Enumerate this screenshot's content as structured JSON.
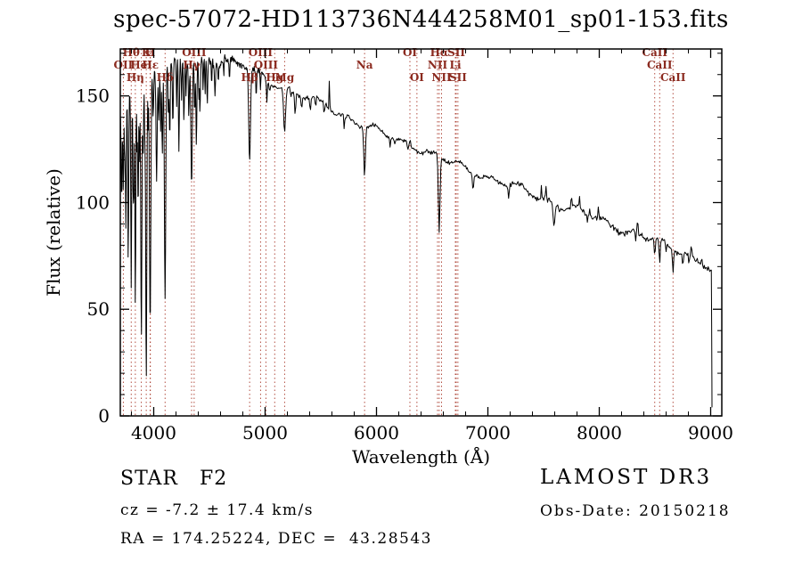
{
  "title": "spec-57072-HD113736N444258M01_sp01-153.fits",
  "annotations": {
    "classification": "STAR   F2",
    "cz": "cz = -7.2 ± 17.4 km/s",
    "ra_dec": "RA = 174.25224, DEC =  43.28543",
    "survey": "LAMOST DR3",
    "obs_date": "Obs-Date: 20150218"
  },
  "chart_data": {
    "type": "line",
    "title": "spec-57072-HD113736N444258M01_sp01-153.fits",
    "xlabel": "Wavelength (Å)",
    "ylabel": "Flux (relative)",
    "xlim": [
      3700,
      9100
    ],
    "ylim": [
      0,
      172
    ],
    "x_ticks": [
      4000,
      5000,
      6000,
      7000,
      8000,
      9000
    ],
    "y_ticks": [
      0,
      50,
      100,
      150
    ],
    "grid": false,
    "legend": "none",
    "colors": {
      "spectrum": "#000000",
      "axis": "#000000",
      "marker_line": "#aa3b2d",
      "marker_label": "#8b2a1f",
      "background": "#ffffff"
    },
    "continuum_format": "[wavelength_A, flux]",
    "continuum": [
      [
        3700,
        140
      ],
      [
        3760,
        152
      ],
      [
        3850,
        157
      ],
      [
        3950,
        160
      ],
      [
        4050,
        162
      ],
      [
        4150,
        164
      ],
      [
        4250,
        165
      ],
      [
        4350,
        166
      ],
      [
        4450,
        167
      ],
      [
        4550,
        167
      ],
      [
        4650,
        166.5
      ],
      [
        4750,
        165
      ],
      [
        4850,
        163
      ],
      [
        4950,
        160
      ],
      [
        5050,
        157
      ],
      [
        5150,
        155
      ],
      [
        5250,
        152
      ],
      [
        5350,
        150
      ],
      [
        5450,
        147
      ],
      [
        5550,
        145
      ],
      [
        5650,
        142
      ],
      [
        5750,
        140
      ],
      [
        5850,
        137
      ],
      [
        5950,
        135
      ],
      [
        6050,
        132
      ],
      [
        6150,
        130
      ],
      [
        6250,
        128
      ],
      [
        6350,
        126
      ],
      [
        6450,
        124
      ],
      [
        6550,
        121
      ],
      [
        6650,
        119
      ],
      [
        6750,
        117
      ],
      [
        6850,
        115
      ],
      [
        6950,
        113
      ],
      [
        7050,
        111
      ],
      [
        7150,
        109
      ],
      [
        7250,
        107
      ],
      [
        7350,
        105
      ],
      [
        7450,
        103
      ],
      [
        7550,
        101
      ],
      [
        7650,
        99
      ],
      [
        7750,
        97
      ],
      [
        7850,
        95
      ],
      [
        7950,
        93
      ],
      [
        8050,
        91
      ],
      [
        8150,
        89
      ],
      [
        8250,
        87
      ],
      [
        8350,
        85
      ],
      [
        8450,
        83
      ],
      [
        8550,
        81
      ],
      [
        8650,
        79
      ],
      [
        8750,
        77
      ],
      [
        8850,
        74
      ],
      [
        8950,
        71
      ],
      [
        9010,
        68
      ]
    ],
    "absorption_format": "[wavelength_A, min_flux, sigma_A]",
    "absorption_lines": [
      [
        3712,
        100,
        4
      ],
      [
        3727,
        105,
        4
      ],
      [
        3740,
        120,
        3
      ],
      [
        3750,
        88,
        4
      ],
      [
        3771,
        72,
        4
      ],
      [
        3798,
        60,
        4
      ],
      [
        3815,
        110,
        3
      ],
      [
        3820,
        96,
        4
      ],
      [
        3835,
        50,
        4
      ],
      [
        3850,
        125,
        3
      ],
      [
        3860,
        96,
        4
      ],
      [
        3873,
        118,
        3
      ],
      [
        3889,
        36,
        5
      ],
      [
        3905,
        122,
        4
      ],
      [
        3920,
        130,
        3
      ],
      [
        3933,
        16,
        5
      ],
      [
        3950,
        135,
        3
      ],
      [
        3968,
        42,
        6
      ],
      [
        3995,
        140,
        4
      ],
      [
        4026,
        110,
        5
      ],
      [
        4045,
        138,
        4
      ],
      [
        4063,
        132,
        3
      ],
      [
        4077,
        122,
        4
      ],
      [
        4102,
        55,
        6
      ],
      [
        4132,
        140,
        4
      ],
      [
        4144,
        130,
        4
      ],
      [
        4172,
        136,
        4
      ],
      [
        4206,
        145,
        3
      ],
      [
        4226,
        124,
        4
      ],
      [
        4250,
        148,
        3
      ],
      [
        4271,
        138,
        4
      ],
      [
        4290,
        150,
        3
      ],
      [
        4315,
        140,
        4
      ],
      [
        4340,
        108,
        6
      ],
      [
        4368,
        142,
        4
      ],
      [
        4383,
        126,
        4
      ],
      [
        4405,
        148,
        3
      ],
      [
        4415,
        142,
        4
      ],
      [
        4443,
        152,
        3
      ],
      [
        4461,
        150,
        3
      ],
      [
        4481,
        146,
        4
      ],
      [
        4520,
        155,
        3
      ],
      [
        4550,
        150,
        4
      ],
      [
        4580,
        156,
        3
      ],
      [
        4630,
        158,
        3
      ],
      [
        4680,
        157,
        3
      ],
      [
        4861,
        120,
        8
      ],
      [
        4920,
        150,
        4
      ],
      [
        4958,
        153,
        3
      ],
      [
        5016,
        147,
        4
      ],
      [
        5041,
        150,
        3
      ],
      [
        5175,
        133,
        9
      ],
      [
        5230,
        148,
        3
      ],
      [
        5270,
        141,
        5
      ],
      [
        5328,
        143,
        4
      ],
      [
        5405,
        140,
        3
      ],
      [
        5455,
        141,
        3
      ],
      [
        5530,
        140,
        3
      ],
      [
        5711,
        133,
        3
      ],
      [
        5893,
        112,
        7
      ],
      [
        6122,
        126,
        4
      ],
      [
        6162,
        127,
        3
      ],
      [
        6280,
        123,
        3
      ],
      [
        6563,
        86,
        7
      ],
      [
        6867,
        106,
        6
      ],
      [
        7186,
        102,
        5
      ],
      [
        7594,
        89,
        8
      ],
      [
        7680,
        96,
        4
      ],
      [
        7891,
        90,
        3
      ],
      [
        8227,
        84,
        4
      ],
      [
        8327,
        82,
        3
      ],
      [
        8434,
        79,
        3
      ],
      [
        8498,
        75,
        5
      ],
      [
        8542,
        71,
        5
      ],
      [
        8598,
        76,
        3
      ],
      [
        8662,
        67,
        5
      ],
      [
        8750,
        70,
        4
      ],
      [
        8806,
        69,
        3
      ]
    ],
    "emission_format": "[wavelength_A, amplitude, sigma_A]",
    "emission_spikes": [
      [
        5577,
        14,
        3
      ],
      [
        4635,
        6,
        3
      ],
      [
        5460,
        5,
        3
      ],
      [
        6301,
        5,
        3
      ],
      [
        7480,
        6,
        3
      ],
      [
        7523,
        5,
        3
      ],
      [
        7750,
        7,
        3
      ],
      [
        7821,
        6,
        3
      ],
      [
        7913,
        5,
        3
      ],
      [
        7993,
        5,
        3
      ],
      [
        8344,
        7,
        3
      ],
      [
        8430,
        5,
        3
      ],
      [
        8827,
        6,
        3
      ],
      [
        8919,
        5,
        3
      ]
    ],
    "red_cutoff_A": 9012,
    "spectral_markers": [
      {
        "wavelength": 3727,
        "label": "OII",
        "row": 2
      },
      {
        "wavelength": 3798,
        "label": "Hθ",
        "row": 1
      },
      {
        "wavelength": 3835,
        "label": "Hη",
        "row": 3
      },
      {
        "wavelength": 3889,
        "label": "HeI",
        "row": 2
      },
      {
        "wavelength": 3933,
        "label": "K",
        "row": 1
      },
      {
        "wavelength": 3968,
        "label": "H",
        "row": 1
      },
      {
        "wavelength": 3970,
        "label": "Hε",
        "row": 2
      },
      {
        "wavelength": 4102,
        "label": "Hδ",
        "row": 3
      },
      {
        "wavelength": 4340,
        "label": "Hγ",
        "row": 2
      },
      {
        "wavelength": 4363,
        "label": "OIII",
        "row": 1
      },
      {
        "wavelength": 4861,
        "label": "Hβ",
        "row": 3
      },
      {
        "wavelength": 4959,
        "label": "OIII",
        "row": 1
      },
      {
        "wavelength": 5007,
        "label": "OIII",
        "row": 2
      },
      {
        "wavelength": 5086,
        "label": "Hg",
        "row": 3
      },
      {
        "wavelength": 5175,
        "label": "Mg",
        "row": 3
      },
      {
        "wavelength": 5893,
        "label": "Na",
        "row": 2
      },
      {
        "wavelength": 6300,
        "label": "OI",
        "row": 1
      },
      {
        "wavelength": 6363,
        "label": "OI",
        "row": 3
      },
      {
        "wavelength": 6548,
        "label": "NII",
        "row": 2
      },
      {
        "wavelength": 6563,
        "label": "Hα",
        "row": 1
      },
      {
        "wavelength": 6584,
        "label": "NII",
        "row": 3
      },
      {
        "wavelength": 6708,
        "label": "Li",
        "row": 2
      },
      {
        "wavelength": 6716,
        "label": "SII",
        "row": 1
      },
      {
        "wavelength": 6731,
        "label": "SII",
        "row": 3
      },
      {
        "wavelength": 8498,
        "label": "CaII",
        "row": 1
      },
      {
        "wavelength": 8542,
        "label": "CaII",
        "row": 2
      },
      {
        "wavelength": 8662,
        "label": "CaII",
        "row": 3
      }
    ]
  }
}
